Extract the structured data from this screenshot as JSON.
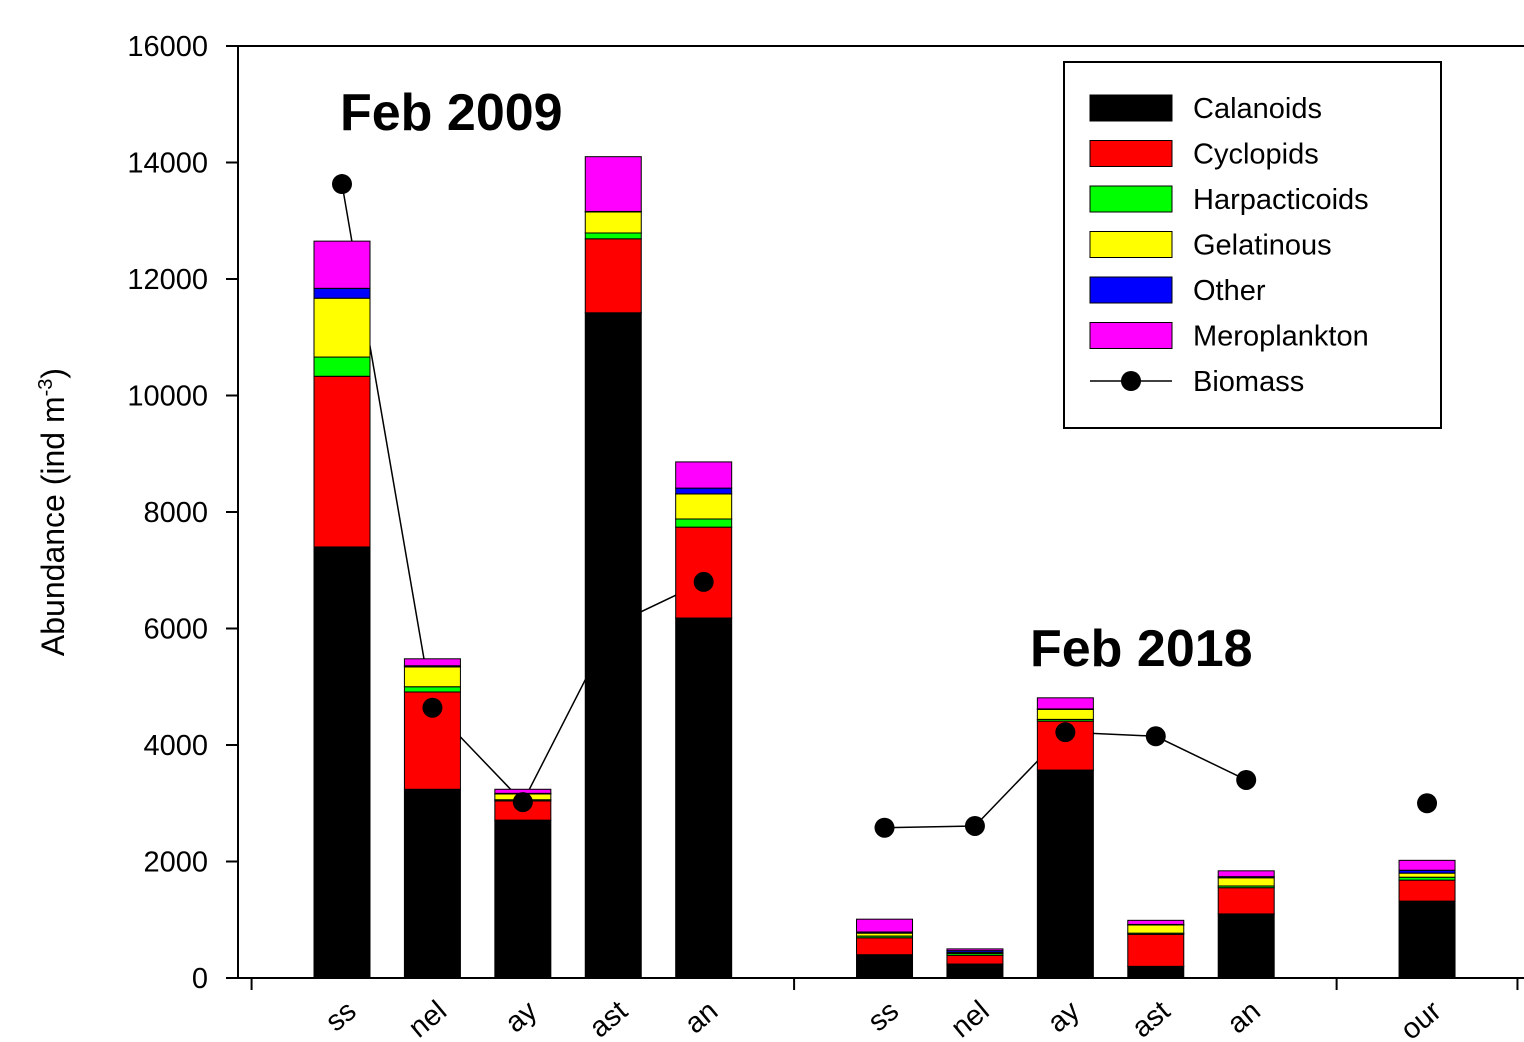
{
  "chart_data": {
    "type": "stacked-bar",
    "y_label": {
      "text": "Abundance (ind m",
      "sup": "-3",
      "end": ")"
    },
    "annotations": [
      "Feb 2009",
      "Feb 2018"
    ],
    "categories": [
      "ss",
      "nel",
      "ay",
      "ast",
      "an",
      null,
      "ss",
      "nel",
      "ay",
      "ast",
      "an",
      null,
      "our"
    ],
    "series": [
      {
        "name": "Calanoids",
        "color": "#000000",
        "values": [
          7400,
          3240,
          2710,
          11420,
          6180,
          null,
          400,
          240,
          3570,
          200,
          1100,
          null,
          1320
        ]
      },
      {
        "name": "Cyclopids",
        "color": "#ff0000",
        "values": [
          2930,
          1670,
          330,
          1270,
          1560,
          null,
          290,
          150,
          840,
          550,
          450,
          null,
          360
        ]
      },
      {
        "name": "Harpacticoids",
        "color": "#00ff00",
        "values": [
          330,
          90,
          20,
          100,
          140,
          null,
          30,
          30,
          30,
          20,
          30,
          null,
          50
        ]
      },
      {
        "name": "Gelatinous",
        "color": "#ffff00",
        "values": [
          1010,
          340,
          100,
          360,
          430,
          null,
          50,
          20,
          170,
          140,
          140,
          null,
          70
        ]
      },
      {
        "name": "Other",
        "color": "#0000ff",
        "values": [
          170,
          20,
          10,
          10,
          100,
          null,
          20,
          30,
          10,
          10,
          20,
          null,
          50
        ]
      },
      {
        "name": "Meroplankton",
        "color": "#ff00ff",
        "values": [
          810,
          120,
          70,
          940,
          450,
          null,
          220,
          30,
          190,
          70,
          100,
          null,
          170
        ]
      }
    ],
    "line_series": {
      "name": "Biomass",
      "color": "#000000",
      "values": [
        13630,
        4640,
        3020,
        6060,
        6800,
        null,
        2580,
        2610,
        4220,
        4150,
        3400,
        null,
        3000
      ]
    },
    "ylim": [
      0,
      16000
    ],
    "yticks": [
      0,
      2000,
      4000,
      6000,
      8000,
      10000,
      12000,
      14000,
      16000
    ],
    "legend": "top-right"
  }
}
